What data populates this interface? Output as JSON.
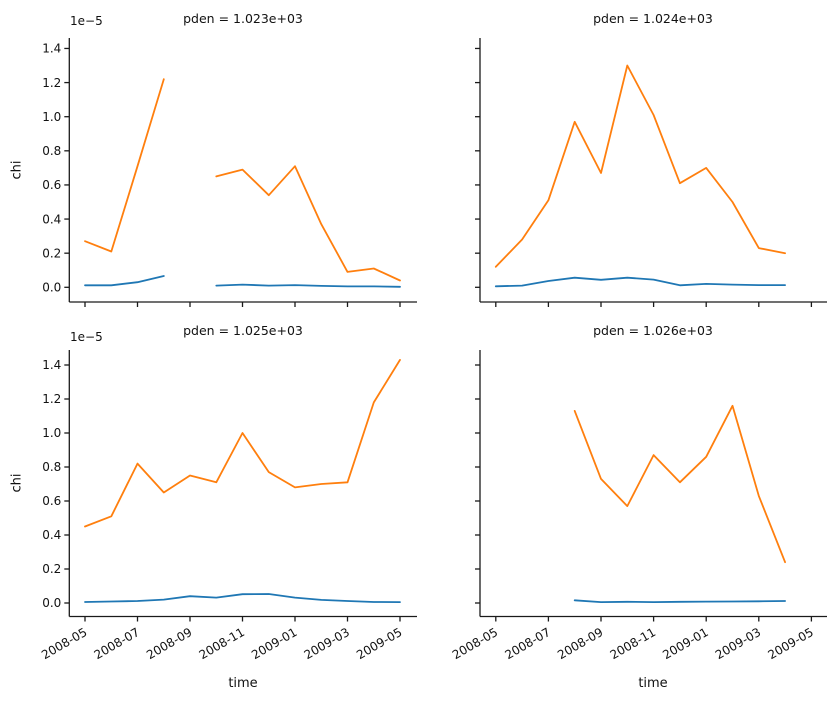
{
  "chart_data": {
    "type": "line",
    "facet_grid": "2x2 by pden",
    "grid": false,
    "legend": null,
    "xlabel": "time",
    "ylabel": "chi",
    "y_offset_label": "1e−5",
    "x": [
      "2008-05",
      "2008-06",
      "2008-07",
      "2008-08",
      "2008-09",
      "2008-10",
      "2008-11",
      "2008-12",
      "2009-01",
      "2009-02",
      "2009-03",
      "2009-04",
      "2009-05"
    ],
    "x_tick_indices": [
      0,
      2,
      4,
      6,
      8,
      10,
      12
    ],
    "x_tick_labels": [
      "2008-05",
      "2008-07",
      "2008-09",
      "2008-11",
      "2009-01",
      "2009-03",
      "2009-05"
    ],
    "x_tick_rotation_deg": 30,
    "y_ticks": [
      "0.0",
      "0.2",
      "0.4",
      "0.6",
      "0.8",
      "1.0",
      "1.2",
      "1.4"
    ],
    "y_units": "1e-5",
    "ylim": [
      -0.08,
      1.46
    ],
    "series_colors": {
      "blue": "#1f77b4",
      "orange": "#ff7f0e"
    },
    "axis_color": "#1a1a1a",
    "facets": [
      {
        "title": "pden = 1.023e+03",
        "series": {
          "blue": [
            0.012,
            0.012,
            0.03,
            0.066,
            null,
            0.01,
            0.016,
            0.01,
            0.013,
            0.008,
            0.005,
            0.005,
            0.003
          ],
          "orange": [
            0.27,
            0.21,
            0.71,
            1.22,
            null,
            0.65,
            0.69,
            0.54,
            0.71,
            0.37,
            0.09,
            0.11,
            0.04
          ]
        }
      },
      {
        "title": "pden = 1.024e+03",
        "series": {
          "blue": [
            0.006,
            0.01,
            0.037,
            0.056,
            0.044,
            0.056,
            0.045,
            0.012,
            0.02,
            0.016,
            0.013,
            0.013,
            null
          ],
          "orange": [
            0.12,
            0.28,
            0.51,
            0.97,
            0.67,
            1.3,
            1.01,
            0.61,
            0.7,
            0.5,
            0.23,
            0.2,
            null
          ]
        }
      },
      {
        "title": "pden = 1.025e+03",
        "series": {
          "blue": [
            0.006,
            0.009,
            0.012,
            0.02,
            0.04,
            0.032,
            0.052,
            0.053,
            0.032,
            0.018,
            0.012,
            0.006,
            0.005
          ],
          "orange": [
            0.45,
            0.51,
            0.82,
            0.65,
            0.75,
            0.71,
            1.0,
            0.77,
            0.68,
            0.7,
            0.71,
            1.18,
            1.43
          ]
        }
      },
      {
        "title": "pden = 1.026e+03",
        "series": {
          "blue": [
            null,
            null,
            null,
            0.016,
            0.005,
            0.007,
            0.005,
            0.007,
            0.008,
            0.009,
            0.01,
            0.012,
            null
          ],
          "orange": [
            null,
            null,
            null,
            1.13,
            0.73,
            0.57,
            0.87,
            0.71,
            0.86,
            1.16,
            0.63,
            0.24,
            null
          ]
        }
      }
    ]
  }
}
